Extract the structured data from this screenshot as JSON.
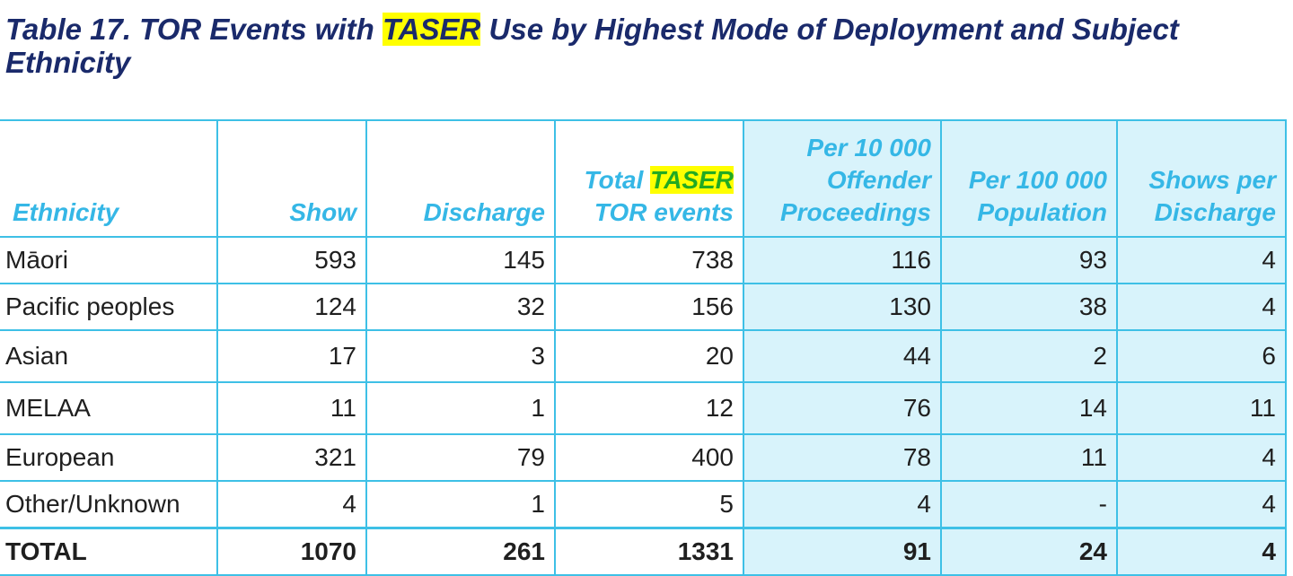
{
  "title": {
    "prefix": "Table 17. TOR Events with ",
    "highlight": "TASER",
    "suffix": " Use by Highest Mode of Deployment and Subject Ethnicity"
  },
  "table": {
    "headers": {
      "ethnicity": "Ethnicity",
      "show": "Show",
      "discharge": "Discharge",
      "total_pre": "Total ",
      "total_hl": "TASER",
      "total_post": "TOR events",
      "per10000": "Per 10 000 Offender Proceedings",
      "per100000": "Per 100 000 Population",
      "shows_per_discharge": "Shows per Discharge"
    },
    "rows": [
      {
        "ethnicity": "Māori",
        "show": "593",
        "discharge": "145",
        "total": "738",
        "per10000": "116",
        "per100000": "93",
        "spd": "4"
      },
      {
        "ethnicity": "Pacific peoples",
        "show": "124",
        "discharge": "32",
        "total": "156",
        "per10000": "130",
        "per100000": "38",
        "spd": "4"
      },
      {
        "ethnicity": "Asian",
        "show": "17",
        "discharge": "3",
        "total": "20",
        "per10000": "44",
        "per100000": "2",
        "spd": "6"
      },
      {
        "ethnicity": "MELAA",
        "show": "11",
        "discharge": "1",
        "total": "12",
        "per10000": "76",
        "per100000": "14",
        "spd": "11"
      },
      {
        "ethnicity": "European",
        "show": "321",
        "discharge": "79",
        "total": "400",
        "per10000": "78",
        "per100000": "11",
        "spd": "4"
      },
      {
        "ethnicity": "Other/Unknown",
        "show": "4",
        "discharge": "1",
        "total": "5",
        "per10000": "4",
        "per100000": "-",
        "spd": "4"
      }
    ],
    "total": {
      "ethnicity": "TOTAL",
      "show": "1070",
      "discharge": "261",
      "total": "1331",
      "per10000": "91",
      "per100000": "24",
      "spd": "4"
    }
  }
}
